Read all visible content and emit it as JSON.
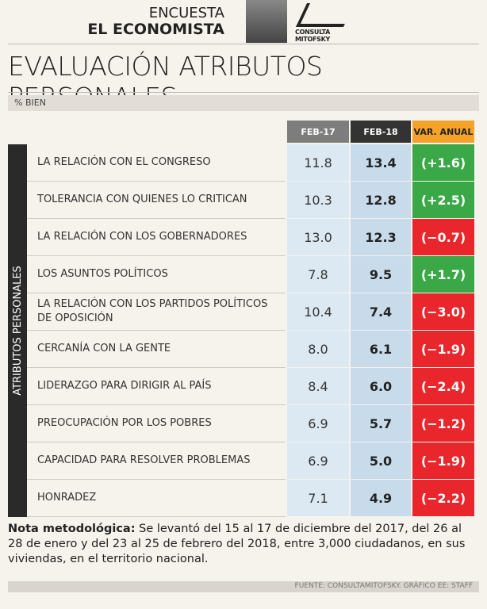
{
  "header": {
    "survey": "ENCUESTA",
    "publication": "EL ECONOMISTA",
    "logo": "CONSULTA MITOFSKY"
  },
  "title": "EVALUACIÓN ATRIBUTOS PERSONALES",
  "subtitle": "% BIEN",
  "table": {
    "columns": [
      "FEB-17",
      "FEB-18",
      "VAR. ANUAL"
    ],
    "group_label": "ATRIBUTOS PERSONALES",
    "rows": [
      [
        "LA RELACIÓN CON EL CONGRESO",
        "11.8",
        "13.4",
        "(+1.6)"
      ],
      [
        "TOLERANCIA CON QUIENES LO CRITICAN",
        "10.3",
        "12.8",
        "(+2.5)"
      ],
      [
        "LA RELACIÓN CON LOS GOBERNADORES",
        "13.0",
        "12.3",
        "(−0.7)"
      ],
      [
        "LOS ASUNTOS POLÍTICOS",
        "7.8",
        "9.5",
        "(+1.7)"
      ],
      [
        "LA RELACIÓN CON LOS PARTIDOS POLÍTICOS DE OPOSICIÓN",
        "10.4",
        "7.4",
        "(−3.0)"
      ],
      [
        "CERCANÍA CON LA GENTE",
        "8.0",
        "6.1",
        "(−1.9)"
      ],
      [
        "LIDERAZGO PARA DIRIGIR AL PAÍS",
        "8.4",
        "6.0",
        "(−2.4)"
      ],
      [
        "PREOCUPACIÓN POR LOS POBRES",
        "6.9",
        "5.7",
        "(−1.2)"
      ],
      [
        "CAPACIDAD PARA RESOLVER PROBLEMAS",
        "6.9",
        "5.0",
        "(−1.9)"
      ],
      [
        "HONRADEZ",
        "7.1",
        "4.9",
        "(−2.2)"
      ]
    ]
  },
  "note": {
    "label": "Nota metodológica:",
    "text": "Se levantó del 15 al 17 de diciembre del 2017, del 26 al 28 de enero y del 23 al 25 de febrero del 2018, entre 3,000 ciudadanos, en sus viviendas, en el territorio nacional."
  },
  "source": "FUENTE: CONSULTAMITOFSKY. GRÁFICO EE: STAFF"
}
